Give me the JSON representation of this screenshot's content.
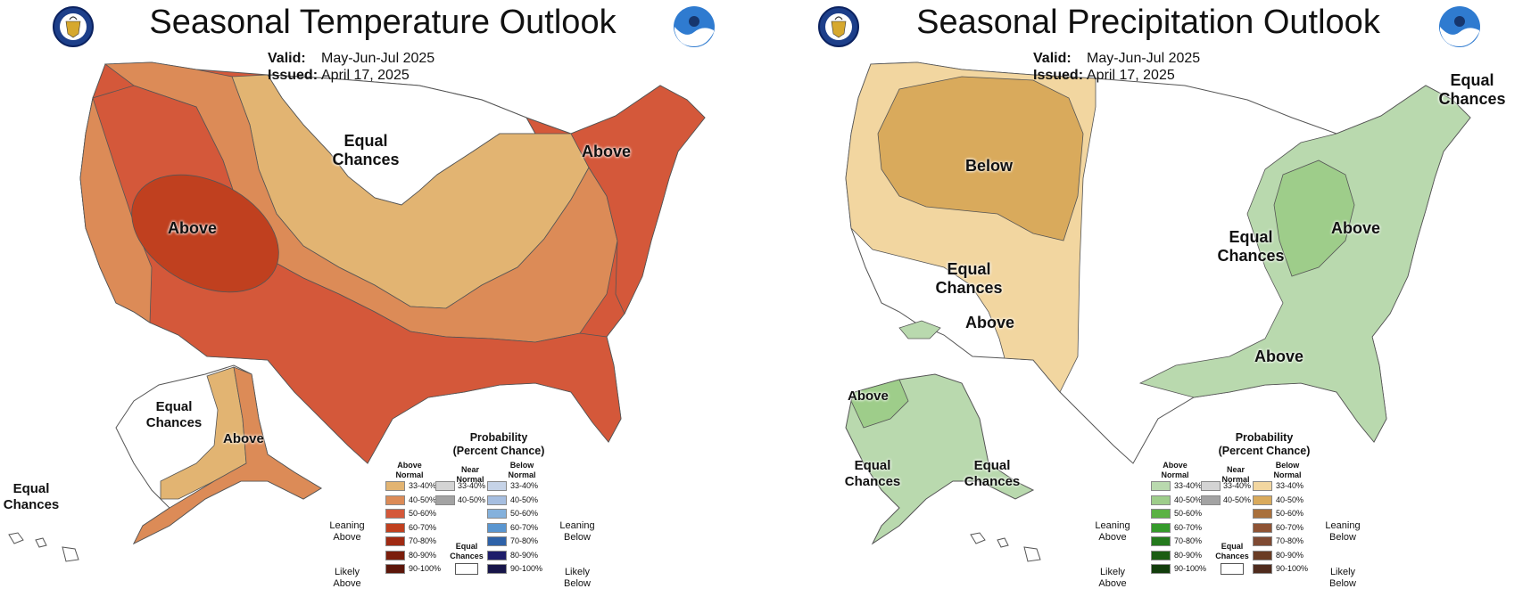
{
  "panels": [
    {
      "title": "Seasonal Temperature Outlook",
      "valid_key": "Valid:",
      "valid": "May-Jun-Jul 2025",
      "issued_key": "Issued:",
      "issued": "April 17, 2025",
      "map_labels": {
        "west": "Above",
        "northern_plains": "Equal Chances",
        "northeast": "Above",
        "alaska_west": "Equal Chances",
        "alaska_southeast": "Above",
        "hawaii": "Equal Chances"
      }
    },
    {
      "title": "Seasonal Precipitation Outlook",
      "valid_key": "Valid:",
      "valid": "May-Jun-Jul 2025",
      "issued_key": "Issued:",
      "issued": "April 17, 2025",
      "map_labels": {
        "northwest": "Below",
        "southwest_ec": "Equal Chances",
        "southwest_above": "Above",
        "central": "Equal Chances",
        "east": "Above",
        "northeast": "Equal Chances",
        "gulf": "Above",
        "alaska_above": "Above",
        "alaska_ec": "Equal Chances",
        "hawaii": "Equal Chances"
      }
    }
  ],
  "legend": {
    "title": "Probability (Percent Chance)",
    "col_above": "Above Normal",
    "col_near": "Near Normal",
    "col_below": "Below Normal",
    "leaning_above": "Leaning Above",
    "likely_above": "Likely Above",
    "leaning_below": "Leaning Below",
    "likely_below": "Likely Below",
    "equal_chances": "Equal Chances",
    "bins": [
      "33-40%",
      "40-50%",
      "50-60%",
      "60-70%",
      "70-80%",
      "80-90%",
      "90-100%"
    ],
    "near_bins": [
      "33-40%",
      "40-50%"
    ]
  },
  "colors": {
    "temp_above": [
      "#e2b472",
      "#dc8b57",
      "#d4583a",
      "#c0401f",
      "#a02a12",
      "#7b1e0c",
      "#5c160a"
    ],
    "temp_below": [
      "#c6d3e7",
      "#a6bee0",
      "#84b1dc",
      "#5a96d0",
      "#2e62a8",
      "#1e1d6a",
      "#171549"
    ],
    "precip_above": [
      "#b9d9ae",
      "#9ecd8a",
      "#5bb244",
      "#359a2b",
      "#247a1d",
      "#1b5c13",
      "#123d0c"
    ],
    "precip_below": [
      "#f2d6a0",
      "#d9aa5c",
      "#a9703b",
      "#8e5334",
      "#7f4a33",
      "#6a3c24",
      "#4f2b1d"
    ],
    "near": [
      "#d4d4d4",
      "#a3a3a3"
    ]
  }
}
